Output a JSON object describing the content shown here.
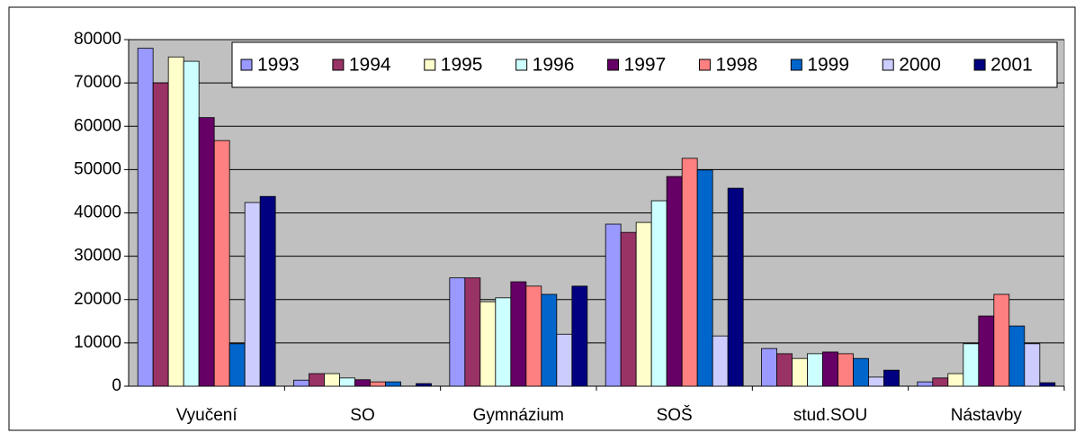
{
  "chart_data": {
    "type": "bar",
    "categories": [
      "Vyučení",
      "SO",
      "Gymnázium",
      "SOŠ",
      "stud.SOU",
      "Nástavby"
    ],
    "series": [
      {
        "name": "1993",
        "color": "#9999ff",
        "values": [
          78000,
          1400,
          25000,
          37400,
          8700,
          1000
        ]
      },
      {
        "name": "1994",
        "color": "#993366",
        "values": [
          70000,
          2900,
          25000,
          35500,
          7500,
          1900
        ]
      },
      {
        "name": "1995",
        "color": "#ffffcc",
        "values": [
          76000,
          2900,
          19500,
          37800,
          6400,
          2900
        ]
      },
      {
        "name": "1996",
        "color": "#ccffff",
        "values": [
          75000,
          1900,
          20400,
          42800,
          7500,
          9800
        ]
      },
      {
        "name": "1997",
        "color": "#660066",
        "values": [
          62000,
          1500,
          24100,
          48400,
          7900,
          16200
        ]
      },
      {
        "name": "1998",
        "color": "#ff8080",
        "values": [
          56700,
          1000,
          23100,
          52600,
          7500,
          21200
        ]
      },
      {
        "name": "1999",
        "color": "#0066cc",
        "values": [
          9800,
          1000,
          21200,
          49900,
          6400,
          13900
        ]
      },
      {
        "name": "2000",
        "color": "#ccccff",
        "values": [
          42400,
          0,
          12000,
          11600,
          2100,
          9800
        ]
      },
      {
        "name": "2001",
        "color": "#000080",
        "values": [
          43800,
          600,
          23100,
          45700,
          3700,
          800
        ]
      }
    ],
    "ylim": [
      0,
      80000
    ],
    "yticks": [
      0,
      10000,
      20000,
      30000,
      40000,
      50000,
      60000,
      70000,
      80000
    ],
    "grid": true,
    "legend": "upper right"
  }
}
